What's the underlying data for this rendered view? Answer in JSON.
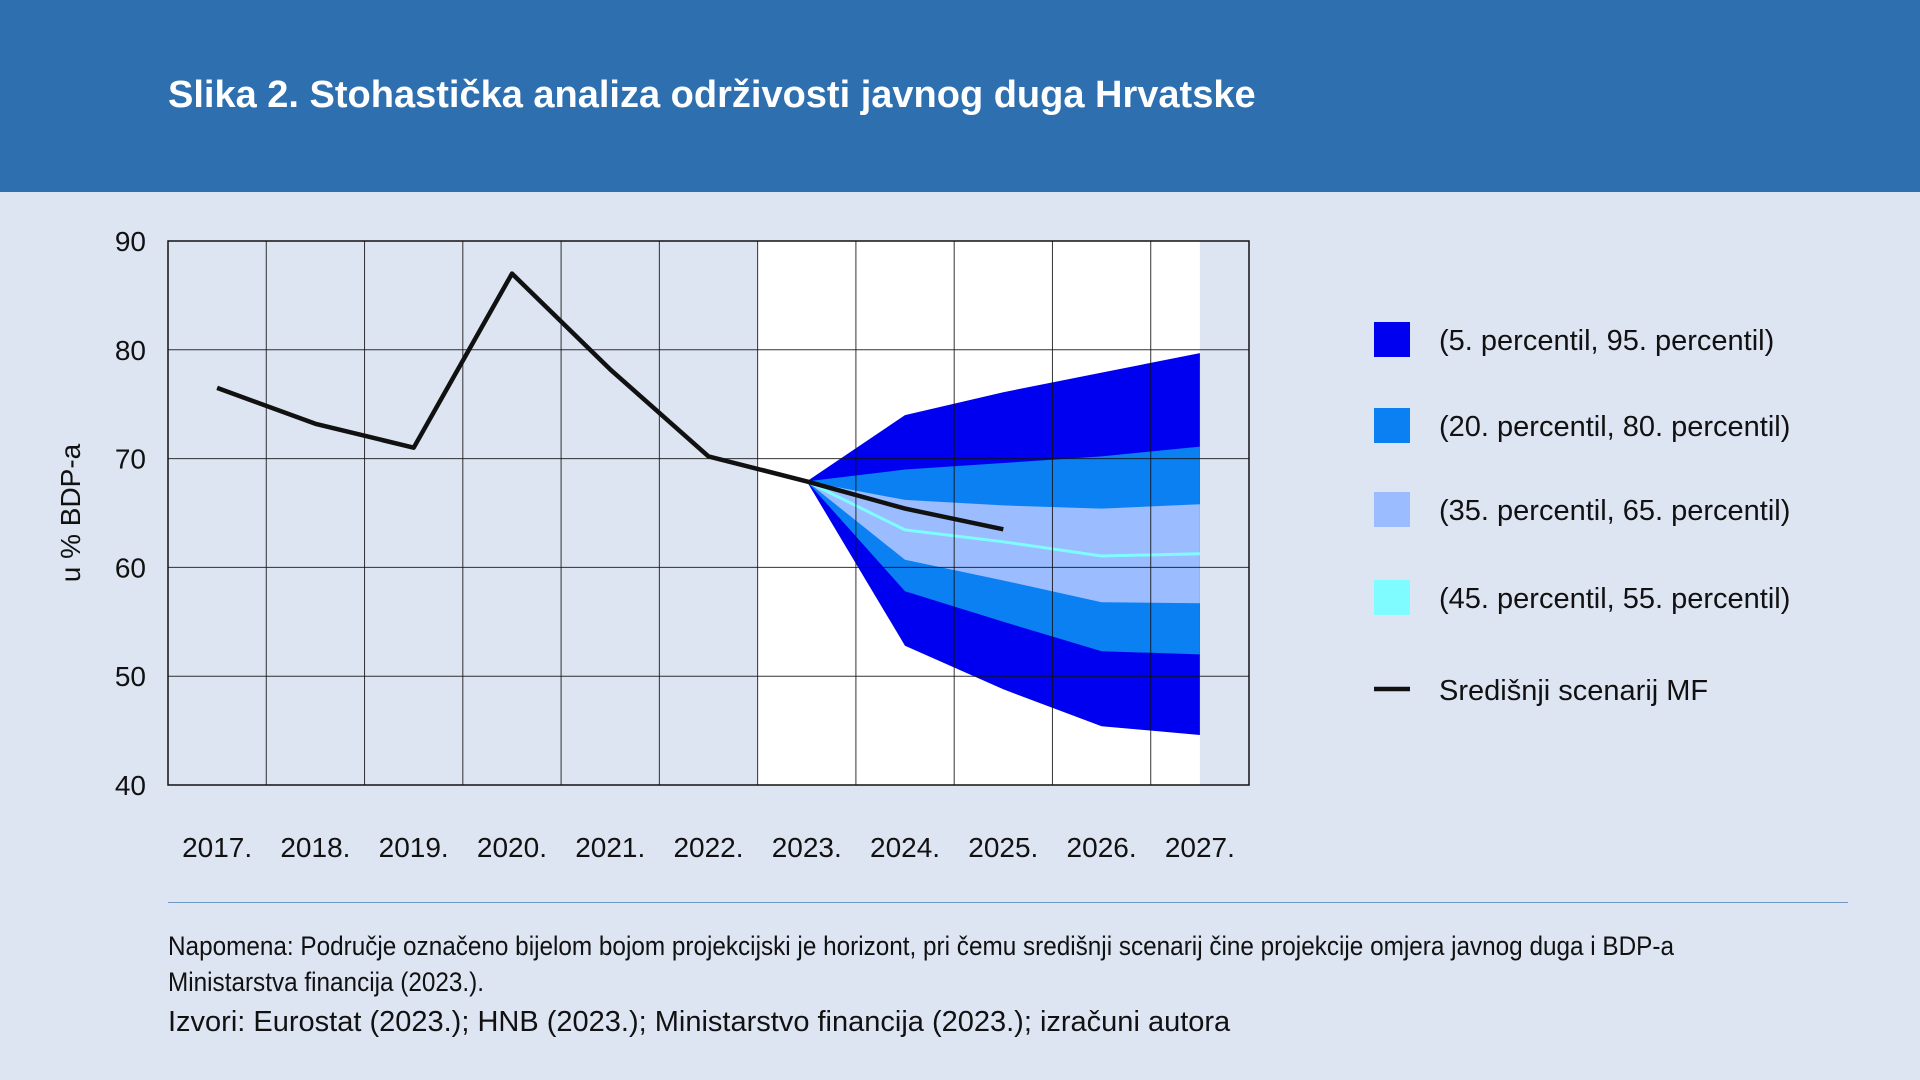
{
  "header": {
    "title": "Slika 2. Stohastička analiza održivosti javnog duga Hrvatske"
  },
  "colors": {
    "header_bg": "#2e6fb0",
    "page_bg": "#dde4f2",
    "band_5_95": "#0000f0",
    "band_20_80": "#0a80f2",
    "band_35_65": "#9bbcff",
    "band_45_55": "#7ffcff",
    "central_line": "#111111"
  },
  "chart_data": {
    "type": "area",
    "ylabel": "u % BDP-a",
    "ylim": [
      40,
      90
    ],
    "yticks": [
      40,
      50,
      60,
      70,
      80,
      90
    ],
    "categories": [
      "2017.",
      "2018.",
      "2019.",
      "2020.",
      "2021.",
      "2022.",
      "2023.",
      "2024.",
      "2025.",
      "2026.",
      "2027."
    ],
    "projection_horizon": [
      "2023.",
      "2027."
    ],
    "grid": true,
    "legend_position": "right",
    "bands": [
      {
        "name": "(5. percentil, 95. percentil)",
        "color": "#0000f0",
        "x": [
          "2023.",
          "2024.",
          "2025.",
          "2026.",
          "2027."
        ],
        "lower": [
          67.9,
          52.8,
          48.8,
          45.4,
          44.6
        ],
        "upper": [
          67.9,
          74.0,
          76.1,
          77.9,
          79.7
        ]
      },
      {
        "name": "(20. percentil, 80. percentil)",
        "color": "#0a80f2",
        "x": [
          "2023.",
          "2024.",
          "2025.",
          "2026.",
          "2027."
        ],
        "lower": [
          67.9,
          57.8,
          55.0,
          52.3,
          52.0
        ],
        "upper": [
          67.9,
          69.0,
          69.6,
          70.2,
          71.1
        ]
      },
      {
        "name": "(35. percentil, 65. percentil)",
        "color": "#9bbcff",
        "x": [
          "2023.",
          "2024.",
          "2025.",
          "2026.",
          "2027."
        ],
        "lower": [
          67.9,
          60.7,
          58.8,
          56.8,
          56.7
        ],
        "upper": [
          67.9,
          66.2,
          65.7,
          65.4,
          65.8
        ]
      },
      {
        "name": "(45. percentil, 55. percentil)",
        "color": "#7ffcff",
        "x": [
          "2023.",
          "2024.",
          "2025.",
          "2026.",
          "2027."
        ],
        "lower": [
          67.9,
          63.3,
          62.2,
          60.9,
          61.1
        ],
        "upper": [
          67.9,
          63.6,
          62.5,
          61.2,
          61.4
        ]
      }
    ],
    "series": [
      {
        "name": "Središnji scenarij MF",
        "color": "#111111",
        "x": [
          "2017.",
          "2018.",
          "2019.",
          "2020.",
          "2021.",
          "2022.",
          "2023.",
          "2024.",
          "2025."
        ],
        "values": [
          76.5,
          73.2,
          71.0,
          87.0,
          78.2,
          70.2,
          67.9,
          65.4,
          63.5
        ]
      }
    ]
  },
  "footer": {
    "note": "Napomena: Područje označeno bijelom bojom projekcijski je horizont, pri čemu središnji scenarij čine projekcije omjera javnog duga i BDP-a Ministarstva financija (2023.).",
    "sources": "Izvori: Eurostat (2023.); HNB (2023.); Ministarstvo financija (2023.); izračuni autora"
  }
}
